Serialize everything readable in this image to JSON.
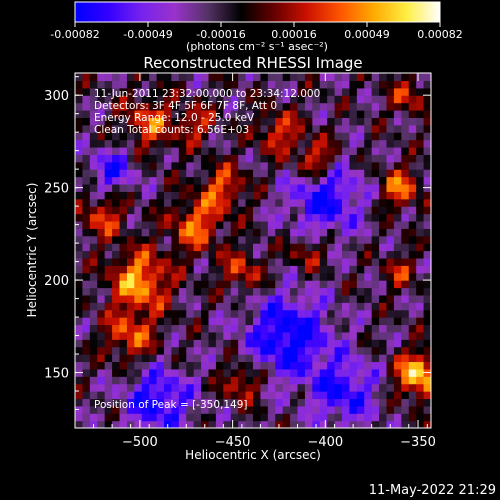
{
  "colorbar": {
    "ticks": [
      "-0.00082",
      "-0.00049",
      "-0.00016",
      "0.00016",
      "0.00049",
      "0.00082"
    ],
    "unit_label": "(photons cm⁻² s⁻¹ asec⁻²)",
    "colormap": [
      "#0000ff",
      "#3300ff",
      "#7722ee",
      "#9933cc",
      "#553366",
      "#000000",
      "#660000",
      "#cc1100",
      "#ff5500",
      "#ffaa00",
      "#ffee44",
      "#ffffff"
    ]
  },
  "chart_data": {
    "type": "heatmap",
    "title": "Reconstructed RHESSI Image",
    "xlabel": "Heliocentric X (arcsec)",
    "ylabel": "Heliocentric Y (arcsec)",
    "xlim": [
      -535,
      -343
    ],
    "ylim": [
      120,
      312
    ],
    "xticks": [
      -500,
      -450,
      -400,
      -350
    ],
    "yticks": [
      150,
      200,
      250,
      300
    ],
    "clim": [
      -0.00082,
      0.00082
    ],
    "peak": [
      -350,
      149
    ],
    "blobs": [
      {
        "x": -350,
        "y": 149,
        "r": 12,
        "v": 0.00082
      },
      {
        "x": -500,
        "y": 200,
        "r": 16,
        "v": 0.0007
      },
      {
        "x": -505,
        "y": 170,
        "r": 14,
        "v": 0.0005
      },
      {
        "x": -470,
        "y": 230,
        "r": 14,
        "v": 0.00055
      },
      {
        "x": -455,
        "y": 250,
        "r": 12,
        "v": 0.0005
      },
      {
        "x": -445,
        "y": 205,
        "r": 11,
        "v": 0.00045
      },
      {
        "x": -495,
        "y": 285,
        "r": 14,
        "v": 0.0005
      },
      {
        "x": -520,
        "y": 235,
        "r": 12,
        "v": 0.00045
      },
      {
        "x": -470,
        "y": 285,
        "r": 10,
        "v": 0.0004
      },
      {
        "x": -425,
        "y": 280,
        "r": 12,
        "v": 0.00045
      },
      {
        "x": -405,
        "y": 265,
        "r": 11,
        "v": 0.0006
      },
      {
        "x": -360,
        "y": 250,
        "r": 11,
        "v": 0.00055
      },
      {
        "x": -355,
        "y": 300,
        "r": 10,
        "v": 0.0004
      },
      {
        "x": -410,
        "y": 215,
        "r": 10,
        "v": 0.00035
      },
      {
        "x": -445,
        "y": 145,
        "r": 10,
        "v": 0.0005
      },
      {
        "x": -360,
        "y": 205,
        "r": 9,
        "v": 0.00035
      },
      {
        "x": -420,
        "y": 170,
        "r": 22,
        "v": -0.0007
      },
      {
        "x": -400,
        "y": 245,
        "r": 20,
        "v": -0.0006
      },
      {
        "x": -490,
        "y": 135,
        "r": 18,
        "v": -0.0006
      },
      {
        "x": -515,
        "y": 260,
        "r": 12,
        "v": -0.0005
      },
      {
        "x": -390,
        "y": 140,
        "r": 18,
        "v": -0.00055
      }
    ]
  },
  "annotations": {
    "time_range": "11-Jun-2011 23:32:00.000 to 23:34:12.000",
    "detectors": "Detectors: 3F 4F 5F 6F 7F 8F, Att 0",
    "energy": "Energy Range: 12.0 - 25.0 keV",
    "clean": "Clean    Total counts: 6.56E+03",
    "peak": "Position of Peak = [-350,149]"
  },
  "footer": {
    "timestamp": "11-May-2022 21:29"
  }
}
